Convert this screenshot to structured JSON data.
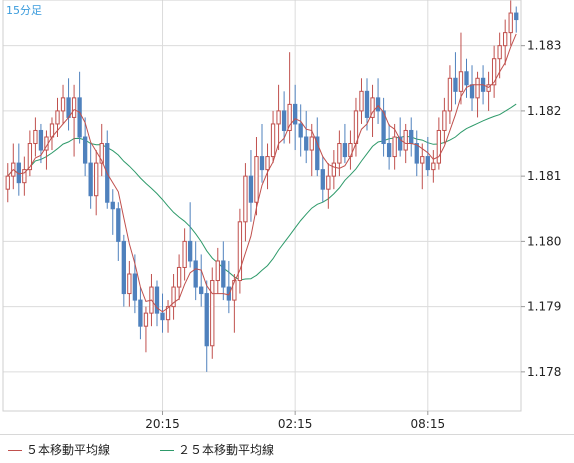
{
  "chart_data": {
    "type": "candlestick",
    "timeframe_label": "15分足",
    "y_ticks": [
      "1.178",
      "1.179",
      "1.180",
      "1.181",
      "1.182",
      "1.183"
    ],
    "ylim": [
      1.1774,
      1.1837
    ],
    "x_ticks": [
      {
        "label": "20:15",
        "index": 28
      },
      {
        "label": "02:15",
        "index": 52
      },
      {
        "label": "08:15",
        "index": 76
      }
    ],
    "grid": true,
    "legend_placement": "bottom",
    "series": [
      {
        "name": "５本移動平均線",
        "color": "#c0504d"
      },
      {
        "name": "２５本移動平均線",
        "color": "#2e9a6a"
      }
    ],
    "colors": {
      "up": "#c0504d",
      "down": "#4f81bd",
      "grid": "#dcdcdc",
      "axis_text": "#222222",
      "timeframe_text": "#3a9bdc"
    },
    "candles": [
      [
        1.1808,
        1.1812,
        1.1806,
        1.181
      ],
      [
        1.181,
        1.1815,
        1.1808,
        1.1812
      ],
      [
        1.1812,
        1.1815,
        1.1807,
        1.1809
      ],
      [
        1.1809,
        1.1813,
        1.1807,
        1.1811
      ],
      [
        1.1811,
        1.1817,
        1.181,
        1.1815
      ],
      [
        1.1815,
        1.1819,
        1.1813,
        1.1817
      ],
      [
        1.1817,
        1.1818,
        1.1812,
        1.1814
      ],
      [
        1.1814,
        1.1817,
        1.1811,
        1.1816
      ],
      [
        1.1816,
        1.1819,
        1.1814,
        1.1818
      ],
      [
        1.1818,
        1.1822,
        1.1816,
        1.182
      ],
      [
        1.182,
        1.1824,
        1.1818,
        1.1822
      ],
      [
        1.1822,
        1.1825,
        1.1817,
        1.1819
      ],
      [
        1.1819,
        1.1824,
        1.1813,
        1.1822
      ],
      [
        1.1822,
        1.1826,
        1.1815,
        1.1816
      ],
      [
        1.1816,
        1.1819,
        1.181,
        1.1812
      ],
      [
        1.1812,
        1.1815,
        1.1805,
        1.1807
      ],
      [
        1.1807,
        1.1814,
        1.1804,
        1.1812
      ],
      [
        1.1812,
        1.1818,
        1.181,
        1.1815
      ],
      [
        1.1815,
        1.1817,
        1.1805,
        1.1806
      ],
      [
        1.1806,
        1.1808,
        1.1801,
        1.1805
      ],
      [
        1.1805,
        1.1806,
        1.1797,
        1.18
      ],
      [
        1.18,
        1.1801,
        1.179,
        1.1792
      ],
      [
        1.1792,
        1.1797,
        1.179,
        1.1795
      ],
      [
        1.1795,
        1.1798,
        1.1789,
        1.1791
      ],
      [
        1.1791,
        1.1793,
        1.1785,
        1.1787
      ],
      [
        1.1787,
        1.179,
        1.1783,
        1.1789
      ],
      [
        1.1789,
        1.1795,
        1.1787,
        1.1793
      ],
      [
        1.1793,
        1.1794,
        1.1787,
        1.1789
      ],
      [
        1.1789,
        1.1792,
        1.1786,
        1.1788
      ],
      [
        1.1788,
        1.1791,
        1.1786,
        1.179
      ],
      [
        1.179,
        1.1795,
        1.1788,
        1.1793
      ],
      [
        1.1793,
        1.1798,
        1.1791,
        1.1796
      ],
      [
        1.1796,
        1.1802,
        1.1794,
        1.18
      ],
      [
        1.18,
        1.1806,
        1.1796,
        1.1797
      ],
      [
        1.1797,
        1.18,
        1.1791,
        1.1793
      ],
      [
        1.1793,
        1.1798,
        1.179,
        1.1792
      ],
      [
        1.1792,
        1.1794,
        1.178,
        1.1784
      ],
      [
        1.1784,
        1.1796,
        1.1782,
        1.1794
      ],
      [
        1.1794,
        1.1799,
        1.1792,
        1.1797
      ],
      [
        1.1797,
        1.18,
        1.1791,
        1.1793
      ],
      [
        1.1793,
        1.1797,
        1.1789,
        1.1791
      ],
      [
        1.1791,
        1.1795,
        1.1786,
        1.1794
      ],
      [
        1.1794,
        1.1805,
        1.1792,
        1.1803
      ],
      [
        1.1803,
        1.1812,
        1.18,
        1.181
      ],
      [
        1.181,
        1.1814,
        1.1803,
        1.1806
      ],
      [
        1.1806,
        1.1816,
        1.1804,
        1.1813
      ],
      [
        1.1813,
        1.1818,
        1.1809,
        1.1811
      ],
      [
        1.1811,
        1.1815,
        1.1808,
        1.1813
      ],
      [
        1.1813,
        1.182,
        1.1812,
        1.1818
      ],
      [
        1.1818,
        1.1824,
        1.1814,
        1.182
      ],
      [
        1.182,
        1.1823,
        1.1815,
        1.1817
      ],
      [
        1.1817,
        1.1829,
        1.1815,
        1.1821
      ],
      [
        1.1821,
        1.1824,
        1.1814,
        1.1818
      ],
      [
        1.1818,
        1.1821,
        1.1813,
        1.1816
      ],
      [
        1.1816,
        1.182,
        1.1812,
        1.1814
      ],
      [
        1.1814,
        1.1818,
        1.181,
        1.1816
      ],
      [
        1.1816,
        1.1819,
        1.181,
        1.1811
      ],
      [
        1.1811,
        1.1813,
        1.1806,
        1.1808
      ],
      [
        1.1808,
        1.1812,
        1.1805,
        1.181
      ],
      [
        1.181,
        1.1814,
        1.1808,
        1.1812
      ],
      [
        1.1812,
        1.1817,
        1.181,
        1.1815
      ],
      [
        1.1815,
        1.1818,
        1.1812,
        1.1813
      ],
      [
        1.1813,
        1.1817,
        1.1811,
        1.1815
      ],
      [
        1.1815,
        1.1822,
        1.1813,
        1.182
      ],
      [
        1.182,
        1.1825,
        1.1818,
        1.1823
      ],
      [
        1.1823,
        1.1825,
        1.1817,
        1.1819
      ],
      [
        1.1819,
        1.1824,
        1.1816,
        1.1822
      ],
      [
        1.1822,
        1.1825,
        1.1818,
        1.182
      ],
      [
        1.182,
        1.1822,
        1.1813,
        1.1815
      ],
      [
        1.1815,
        1.1818,
        1.1811,
        1.1813
      ],
      [
        1.1813,
        1.1818,
        1.1811,
        1.1816
      ],
      [
        1.1816,
        1.1819,
        1.1813,
        1.1814
      ],
      [
        1.1814,
        1.1818,
        1.1812,
        1.1817
      ],
      [
        1.1817,
        1.1819,
        1.1813,
        1.1815
      ],
      [
        1.1815,
        1.1817,
        1.181,
        1.1812
      ],
      [
        1.1812,
        1.1815,
        1.1808,
        1.1813
      ],
      [
        1.1813,
        1.1816,
        1.181,
        1.1811
      ],
      [
        1.1811,
        1.1814,
        1.1809,
        1.1812
      ],
      [
        1.1812,
        1.1819,
        1.1811,
        1.1817
      ],
      [
        1.1817,
        1.1822,
        1.1815,
        1.182
      ],
      [
        1.182,
        1.1827,
        1.1818,
        1.1825
      ],
      [
        1.1825,
        1.1829,
        1.1821,
        1.1823
      ],
      [
        1.1823,
        1.1832,
        1.1821,
        1.1826
      ],
      [
        1.1826,
        1.1828,
        1.1822,
        1.1824
      ],
      [
        1.1824,
        1.1827,
        1.182,
        1.1822
      ],
      [
        1.1822,
        1.1826,
        1.1819,
        1.1825
      ],
      [
        1.1825,
        1.1827,
        1.1821,
        1.1823
      ],
      [
        1.1823,
        1.1826,
        1.182,
        1.1824
      ],
      [
        1.1824,
        1.183,
        1.1822,
        1.1828
      ],
      [
        1.1828,
        1.1832,
        1.1825,
        1.183
      ],
      [
        1.183,
        1.1834,
        1.1827,
        1.1832
      ],
      [
        1.1832,
        1.1837,
        1.183,
        1.1835
      ],
      [
        1.1835,
        1.1836,
        1.1832,
        1.1834
      ]
    ]
  },
  "legend": {
    "ma5_label": "５本移動平均線",
    "ma25_label": "２５本移動平均線"
  }
}
